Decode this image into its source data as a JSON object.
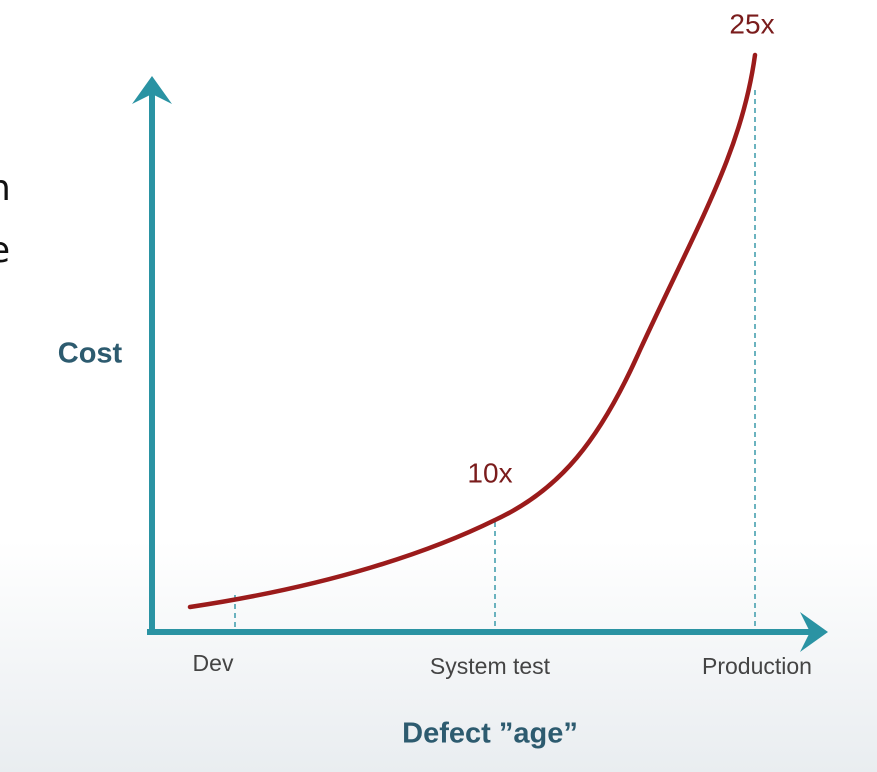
{
  "fragments": [
    "n",
    "e"
  ],
  "y_axis_label": "Cost",
  "x_axis_label": "Defect ”age”",
  "stages": [
    "Dev",
    "System test",
    "Production"
  ],
  "annotations": [
    "10x",
    "25x"
  ]
}
